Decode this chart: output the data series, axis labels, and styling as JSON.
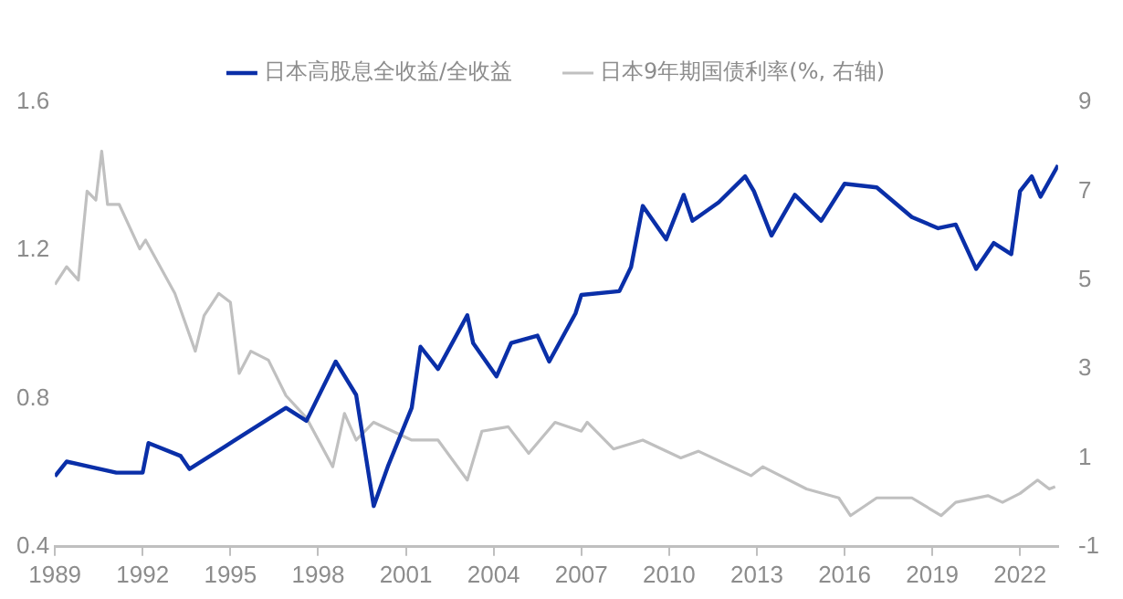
{
  "chart_data": {
    "type": "line",
    "legend": "top",
    "grid": false,
    "marker": "none",
    "line_style": "solid",
    "xlim": [
      1989,
      2023.3
    ],
    "xticks": [
      1989,
      1992,
      1995,
      1998,
      2001,
      2004,
      2007,
      2010,
      2013,
      2016,
      2019,
      2022
    ],
    "ylim": [
      0.4,
      1.6
    ],
    "yticks": [
      0.4,
      0.8,
      1.2,
      1.6
    ],
    "y2lim": [
      -1,
      9
    ],
    "y2ticks": [
      -1,
      1,
      3,
      5,
      7,
      9
    ],
    "series": [
      {
        "name": "日本高股息全收益/全收益",
        "color": "#0a2fa8",
        "x": [
          1989.0,
          1989.4,
          1991.1,
          1992.0,
          1992.2,
          1993.3,
          1993.6,
          1994.8,
          1996.9,
          1997.6,
          1998.6,
          1999.3,
          1999.9,
          2000.4,
          2001.2,
          2001.5,
          2002.1,
          2003.1,
          2003.3,
          2004.1,
          2004.6,
          2005.5,
          2005.9,
          2006.8,
          2007.0,
          2008.3,
          2008.7,
          2009.1,
          2009.9,
          2010.5,
          2010.8,
          2011.7,
          2012.6,
          2012.9,
          2013.5,
          2014.3,
          2015.2,
          2016.0,
          2017.1,
          2018.3,
          2019.2,
          2019.8,
          2020.5,
          2021.1,
          2021.7,
          2022.0,
          2022.4,
          2022.7,
          2023.3
        ],
        "values": [
          0.59,
          0.63,
          0.6,
          0.6,
          0.68,
          0.645,
          0.61,
          0.67,
          0.775,
          0.74,
          0.9,
          0.81,
          0.51,
          0.62,
          0.775,
          0.94,
          0.88,
          1.025,
          0.95,
          0.86,
          0.95,
          0.97,
          0.9,
          1.03,
          1.08,
          1.09,
          1.155,
          1.32,
          1.23,
          1.35,
          1.28,
          1.33,
          1.4,
          1.36,
          1.24,
          1.35,
          1.28,
          1.38,
          1.37,
          1.29,
          1.26,
          1.27,
          1.15,
          1.22,
          1.19,
          1.36,
          1.4,
          1.345,
          1.43
        ]
      },
      {
        "name": "日本9年期国债利率(%, 右轴)",
        "color": "#c0c0c0",
        "axis": "y2",
        "x": [
          1989.0,
          1989.4,
          1989.8,
          1990.1,
          1990.4,
          1990.6,
          1990.8,
          1991.2,
          1991.9,
          1992.1,
          1993.1,
          1993.8,
          1994.1,
          1994.6,
          1995.0,
          1995.3,
          1995.7,
          1996.3,
          1996.9,
          1997.6,
          1998.5,
          1998.9,
          1999.3,
          1999.9,
          2001.2,
          2002.1,
          2003.1,
          2003.6,
          2004.5,
          2005.2,
          2006.1,
          2007.0,
          2007.2,
          2008.1,
          2009.1,
          2010.4,
          2011.0,
          2012.8,
          2013.2,
          2014.7,
          2015.8,
          2016.2,
          2017.1,
          2018.3,
          2019.3,
          2019.8,
          2020.9,
          2021.4,
          2022.0,
          2022.6,
          2023.0,
          2023.2
        ],
        "values": [
          4.9,
          5.3,
          5.0,
          7.0,
          6.8,
          7.9,
          6.7,
          6.7,
          5.7,
          5.9,
          4.7,
          3.4,
          4.2,
          4.7,
          4.5,
          2.9,
          3.4,
          3.2,
          2.4,
          1.9,
          0.8,
          2.0,
          1.4,
          1.8,
          1.4,
          1.4,
          0.5,
          1.6,
          1.7,
          1.1,
          1.8,
          1.6,
          1.8,
          1.2,
          1.4,
          1.0,
          1.15,
          0.6,
          0.8,
          0.3,
          0.1,
          -0.3,
          0.1,
          0.1,
          -0.3,
          0.0,
          0.15,
          0.0,
          0.2,
          0.5,
          0.3,
          0.35
        ]
      }
    ]
  }
}
